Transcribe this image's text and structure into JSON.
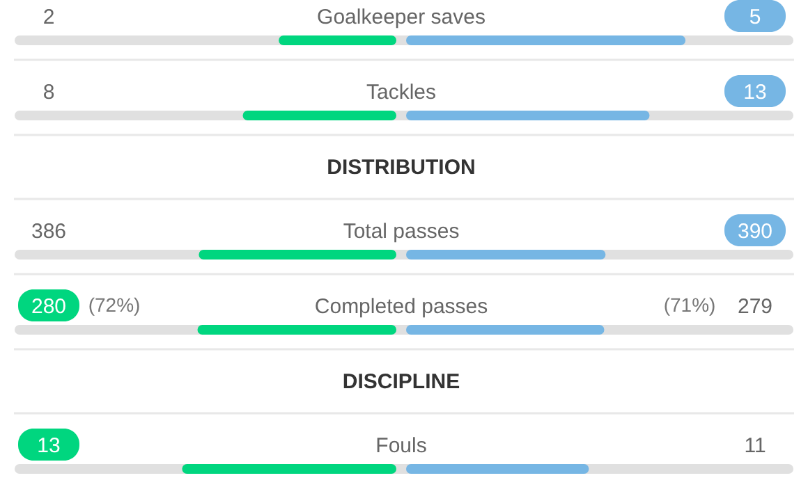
{
  "chart_data": {
    "type": "other",
    "categories": [
      "Goalkeeper saves",
      "Tackles",
      "Total passes",
      "Completed passes",
      "Fouls"
    ],
    "series": [
      {
        "color": "#00d67f",
        "values": [
          2,
          8,
          386,
          280,
          13
        ]
      },
      {
        "color": "#76b6e4",
        "values": [
          5,
          13,
          390,
          279,
          11
        ]
      }
    ],
    "data_labels": true,
    "annotations": [
      "DISTRIBUTION",
      "DISCIPLINE",
      "(72%)",
      "(71%)"
    ]
  }
}
